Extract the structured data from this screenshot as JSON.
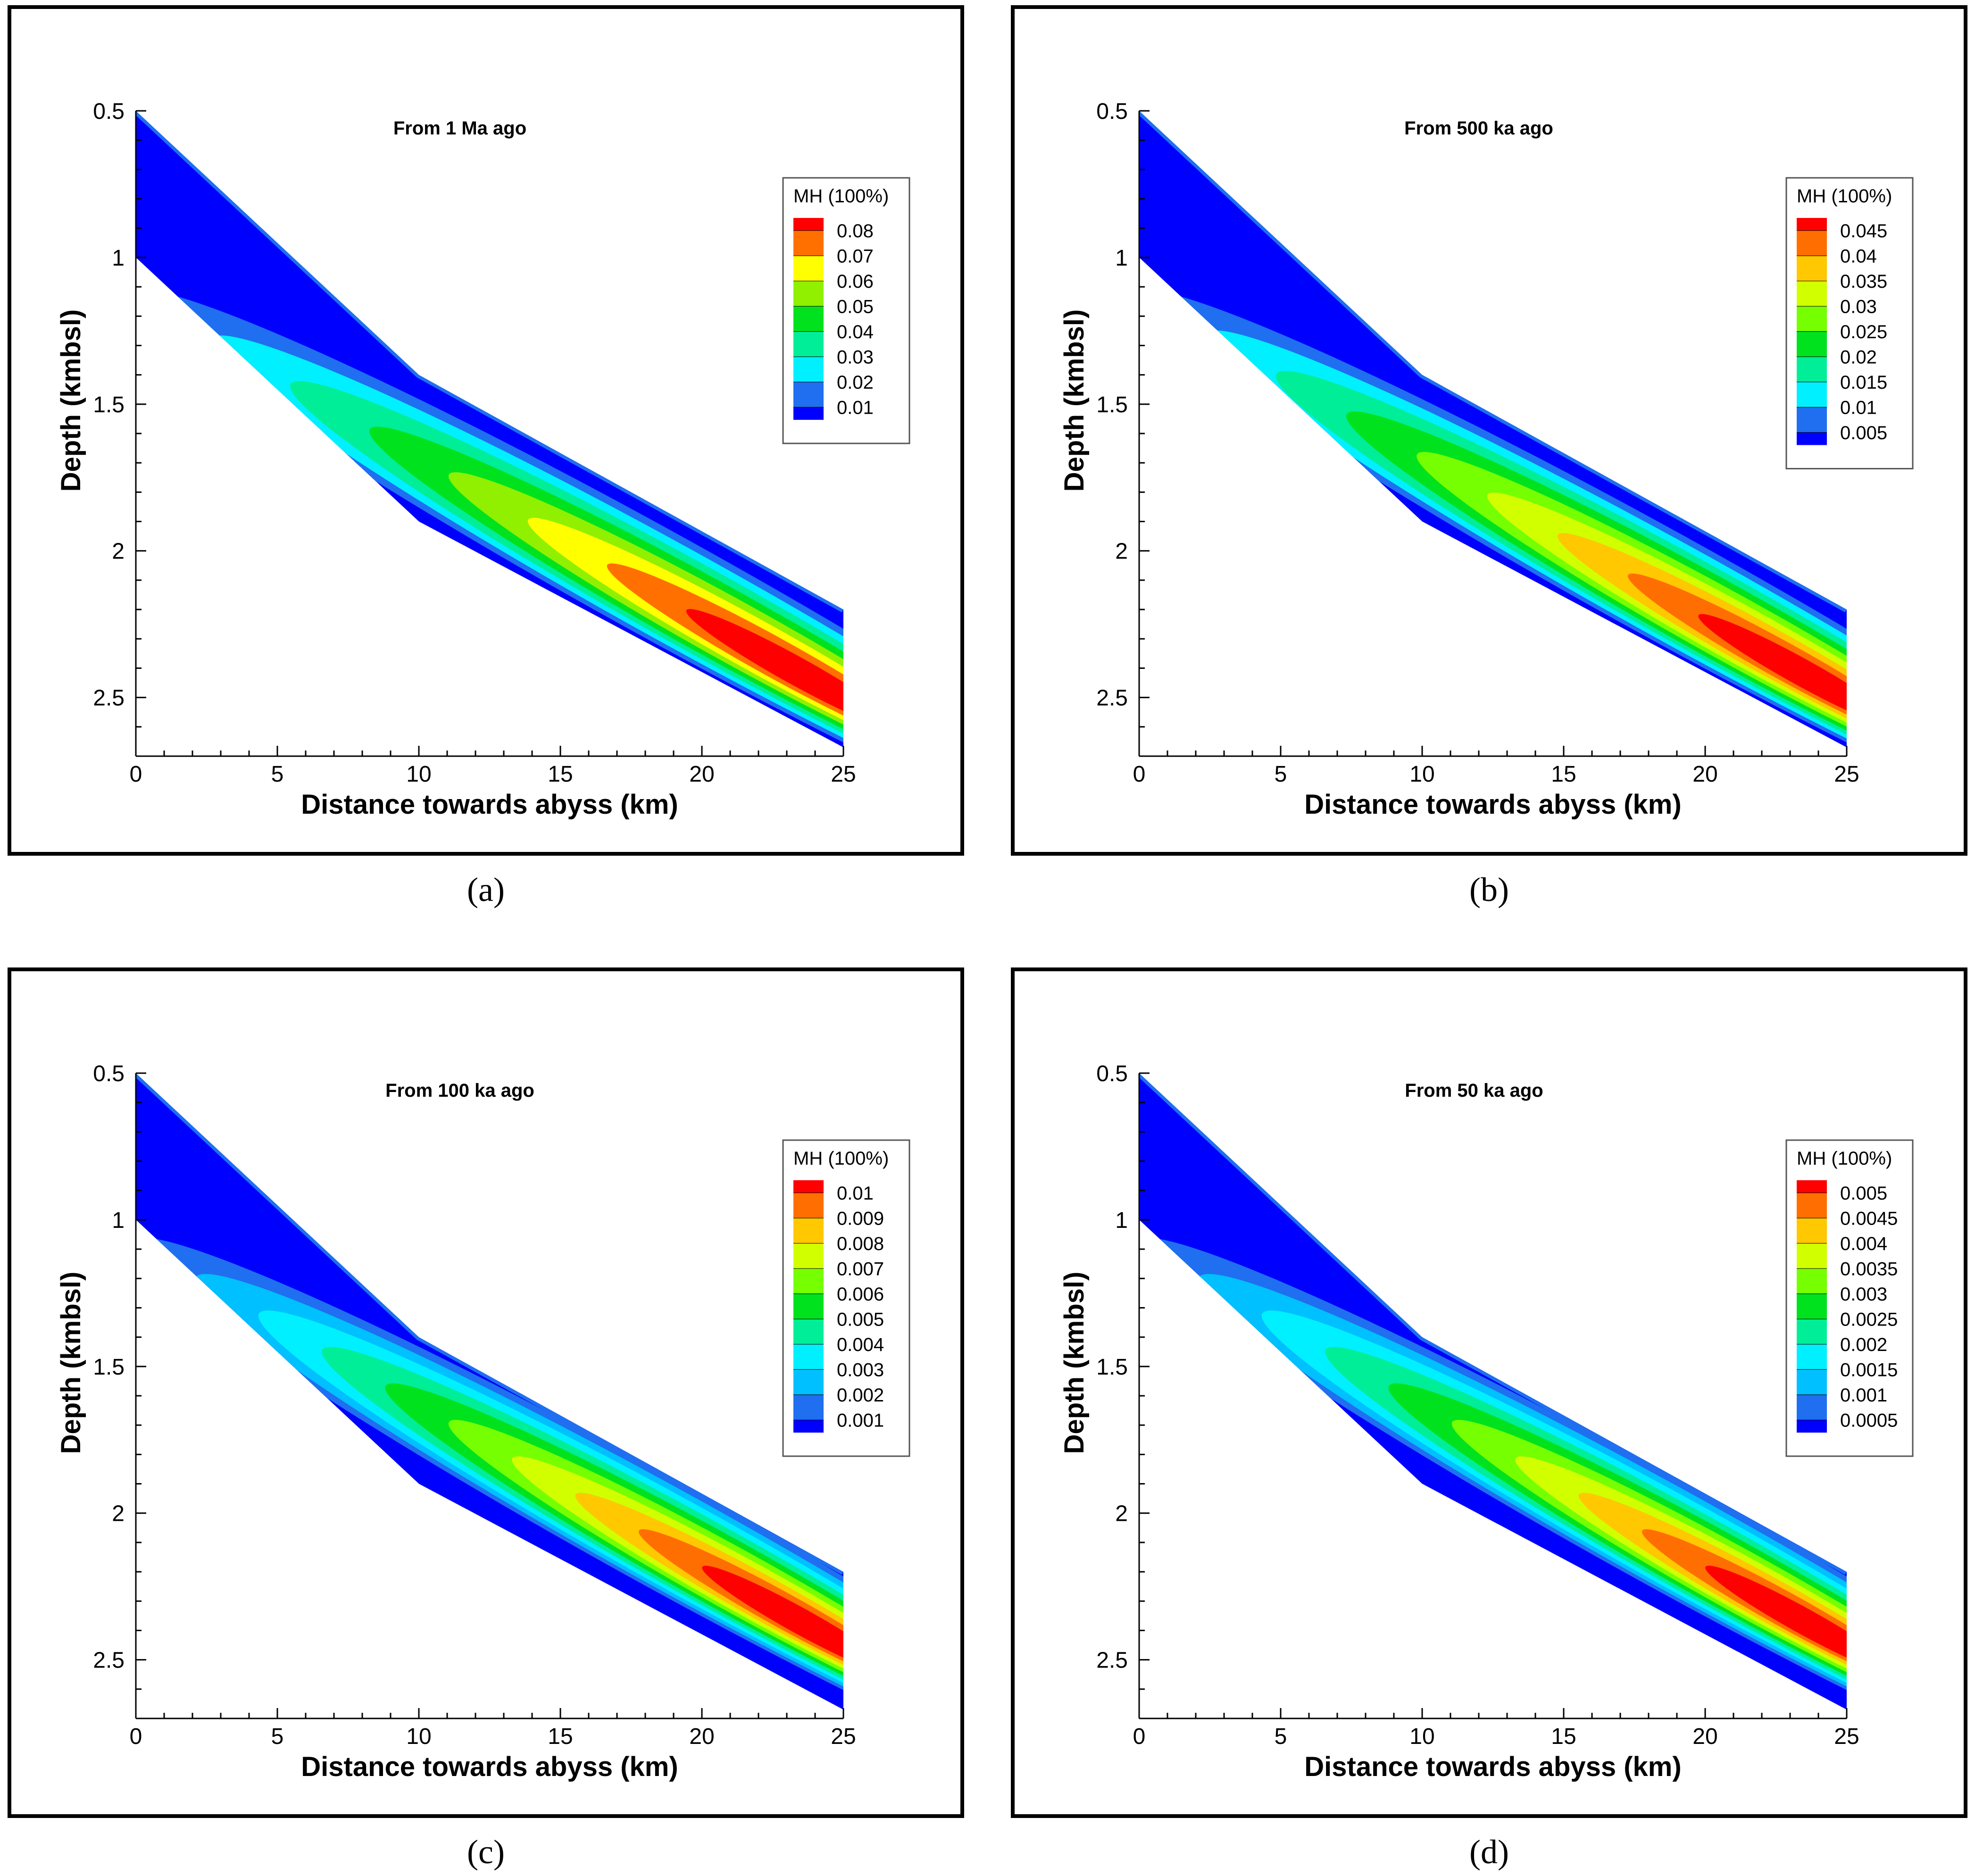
{
  "figure": {
    "colors": {
      "frame": "#000000",
      "background": "#ffffff",
      "palette": [
        "#0000ff",
        "#1f6ff0",
        "#00d8ff",
        "#00ff99",
        "#00e21e",
        "#75ff00",
        "#d2ff00",
        "#ffff00",
        "#ffc800",
        "#ff6e00",
        "#ff0000"
      ]
    }
  },
  "chart_data": [
    {
      "type": "contour",
      "panel": "a",
      "caption": "(a)",
      "title": "From 1 Ma ago",
      "xlabel": "Distance towards abyss (km)",
      "ylabel": "Depth (kmbsl)",
      "xlim": [
        0,
        25
      ],
      "ylim": [
        2.7,
        0.5
      ],
      "xticks": [
        0,
        5,
        10,
        15,
        20,
        25
      ],
      "yticks": [
        0.5,
        1,
        1.5,
        2,
        2.5
      ],
      "legend": {
        "title": "MH (100%)",
        "position": "top-right",
        "levels": [
          "0.08",
          "0.07",
          "0.06",
          "0.05",
          "0.04",
          "0.03",
          "0.02",
          "0.01"
        ],
        "colors": [
          "#ff0000",
          "#ff7000",
          "#ffff00",
          "#90f000",
          "#00e21e",
          "#00ee98",
          "#00f0ff",
          "#1f6ff0",
          "#0000ff"
        ]
      },
      "profile": {
        "top": [
          [
            0,
            0.5
          ],
          [
            10,
            1.4
          ],
          [
            25,
            2.2
          ]
        ],
        "bottom": [
          [
            0,
            1.0
          ],
          [
            10,
            1.9
          ],
          [
            25,
            2.67
          ]
        ]
      },
      "max_value_location": {
        "x": 24,
        "z": 2.45
      }
    },
    {
      "type": "contour",
      "panel": "b",
      "caption": "(b)",
      "title": "From 500 ka ago",
      "xlabel": "Distance towards abyss (km)",
      "ylabel": "Depth (kmbsl)",
      "xlim": [
        0,
        25
      ],
      "ylim": [
        2.7,
        0.5
      ],
      "xticks": [
        0,
        5,
        10,
        15,
        20,
        25
      ],
      "yticks": [
        0.5,
        1,
        1.5,
        2,
        2.5
      ],
      "legend": {
        "title": "MH (100%)",
        "position": "top-right",
        "levels": [
          "0.045",
          "0.04",
          "0.035",
          "0.03",
          "0.025",
          "0.02",
          "0.015",
          "0.01",
          "0.005"
        ],
        "colors": [
          "#ff0000",
          "#ff6e00",
          "#ffc800",
          "#d2ff00",
          "#75ff00",
          "#00e21e",
          "#00ee98",
          "#00f0ff",
          "#1f6ff0",
          "#0000ff"
        ]
      },
      "profile": {
        "top": [
          [
            0,
            0.5
          ],
          [
            10,
            1.4
          ],
          [
            25,
            2.2
          ]
        ],
        "bottom": [
          [
            0,
            1.0
          ],
          [
            10,
            1.9
          ],
          [
            25,
            2.67
          ]
        ]
      },
      "max_value_location": {
        "x": 24,
        "z": 2.45
      }
    },
    {
      "type": "contour",
      "panel": "c",
      "caption": "(c)",
      "title": "From 100 ka ago",
      "xlabel": "Distance towards abyss (km)",
      "ylabel": "Depth (kmbsl)",
      "xlim": [
        0,
        25
      ],
      "ylim": [
        2.7,
        0.5
      ],
      "xticks": [
        0,
        5,
        10,
        15,
        20,
        25
      ],
      "yticks": [
        0.5,
        1,
        1.5,
        2,
        2.5
      ],
      "legend": {
        "title": "MH (100%)",
        "position": "top-right",
        "levels": [
          "0.01",
          "0.009",
          "0.008",
          "0.007",
          "0.006",
          "0.005",
          "0.004",
          "0.003",
          "0.002",
          "0.001"
        ],
        "colors": [
          "#ff0000",
          "#ff6e00",
          "#ffc800",
          "#d2ff00",
          "#75ff00",
          "#00e21e",
          "#00ee98",
          "#00f0ff",
          "#00c0ff",
          "#1f6ff0",
          "#0000ff"
        ]
      },
      "profile": {
        "top": [
          [
            0,
            0.5
          ],
          [
            10,
            1.4
          ],
          [
            25,
            2.2
          ]
        ],
        "bottom": [
          [
            0,
            1.0
          ],
          [
            10,
            1.9
          ],
          [
            25,
            2.67
          ]
        ]
      },
      "max_value_location": {
        "x": 24,
        "z": 2.4
      }
    },
    {
      "type": "contour",
      "panel": "d",
      "caption": "(d)",
      "title": "From 50 ka ago",
      "xlabel": "Distance towards abyss (km)",
      "ylabel": "Depth (kmbsl)",
      "xlim": [
        0,
        25
      ],
      "ylim": [
        2.7,
        0.5
      ],
      "xticks": [
        0,
        5,
        10,
        15,
        20,
        25
      ],
      "yticks": [
        0.5,
        1,
        1.5,
        2,
        2.5
      ],
      "legend": {
        "title": "MH (100%)",
        "position": "top-right",
        "levels": [
          "0.005",
          "0.0045",
          "0.004",
          "0.0035",
          "0.003",
          "0.0025",
          "0.002",
          "0.0015",
          "0.001",
          "0.0005"
        ],
        "colors": [
          "#ff0000",
          "#ff6e00",
          "#ffc800",
          "#d2ff00",
          "#75ff00",
          "#00e21e",
          "#00ee98",
          "#00f0ff",
          "#00c0ff",
          "#1f6ff0",
          "#0000ff"
        ]
      },
      "profile": {
        "top": [
          [
            0,
            0.5
          ],
          [
            10,
            1.4
          ],
          [
            25,
            2.2
          ]
        ],
        "bottom": [
          [
            0,
            1.0
          ],
          [
            10,
            1.9
          ],
          [
            25,
            2.67
          ]
        ]
      },
      "max_value_location": {
        "x": 24,
        "z": 2.4
      }
    }
  ]
}
